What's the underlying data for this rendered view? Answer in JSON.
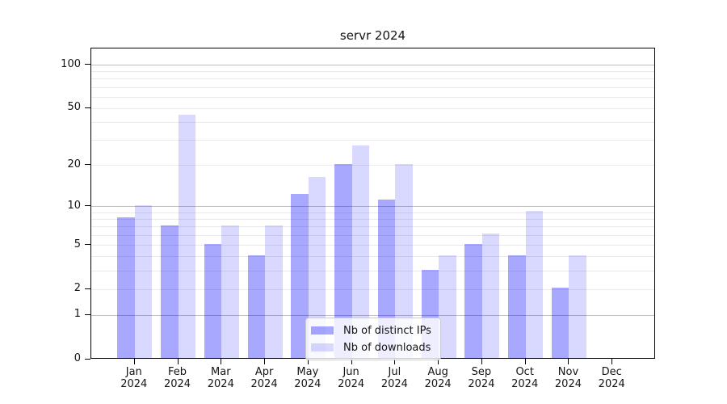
{
  "title": "servr 2024",
  "chart_data": {
    "type": "bar",
    "title": "servr 2024",
    "categories": [
      "Jan 2024",
      "Feb 2024",
      "Mar 2024",
      "Apr 2024",
      "May 2024",
      "Jun 2024",
      "Jul 2024",
      "Aug 2024",
      "Sep 2024",
      "Oct 2024",
      "Nov 2024",
      "Dec 2024"
    ],
    "series": [
      {
        "name": "Nb of distinct IPs",
        "color": "rgba(0,0,255,0.34)",
        "values": [
          8,
          7,
          5,
          4,
          12,
          20,
          11,
          3,
          5,
          4,
          2,
          0
        ]
      },
      {
        "name": "Nb of downloads",
        "color": "rgba(0,0,255,0.15)",
        "values": [
          10,
          44,
          7,
          7,
          16,
          27,
          20,
          4,
          6,
          9,
          4,
          0
        ]
      }
    ],
    "xlabel": "",
    "ylabel": "",
    "y_scale": "log1p",
    "ylim": [
      0,
      130
    ],
    "y_tick_labels": [
      0,
      1,
      2,
      5,
      10,
      20,
      50,
      100
    ],
    "y_major_gridlines": [
      1,
      10,
      100
    ],
    "y_minor_gridlines": [
      2,
      3,
      4,
      5,
      6,
      7,
      8,
      9,
      20,
      30,
      40,
      50,
      60,
      70,
      80,
      90
    ],
    "grid": "on",
    "legend_position": "lower center"
  },
  "style": {
    "bar_distinct_ips_color": "rgba(0,0,255,0.34)",
    "bar_downloads_color": "rgba(0,0,255,0.15)",
    "grid_major_color": "#c0c0c0",
    "grid_minor_color": "#eaeaea",
    "spine_color": "#000000",
    "text_color": "#141414",
    "background_color": "#ffffff"
  }
}
